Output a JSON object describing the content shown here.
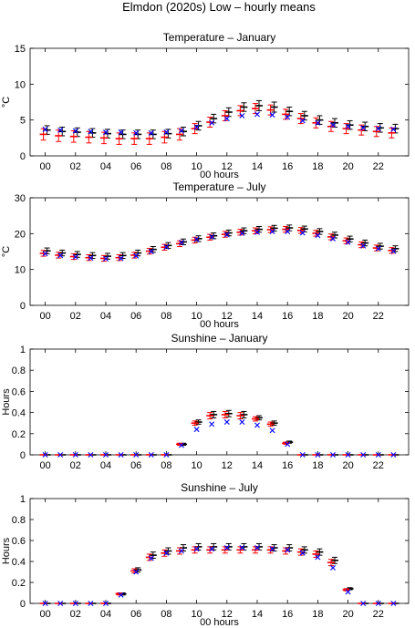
{
  "title": "Elmdon (2020s) Low – hourly means",
  "colors": {
    "black": "#000000",
    "red": "#ff0000",
    "blue": "#0000ff",
    "frame": "#000000"
  },
  "chart_data": [
    {
      "type": "scatter",
      "title": "Temperature – January",
      "xlabel": "00 hours",
      "ylabel": "°C",
      "ylim": [
        0,
        15
      ],
      "yticks": [
        "0",
        "5",
        "10",
        "15"
      ],
      "xticks": [
        "00",
        "02",
        "04",
        "06",
        "08",
        "10",
        "12",
        "14",
        "16",
        "18",
        "20",
        "22"
      ],
      "x": [
        0,
        1,
        2,
        3,
        4,
        5,
        6,
        7,
        8,
        9,
        10,
        11,
        12,
        13,
        14,
        15,
        16,
        17,
        18,
        19,
        20,
        21,
        22,
        23
      ],
      "series": [
        {
          "color": "black",
          "marker": "errorbar",
          "values": [
            3.6,
            3.4,
            3.3,
            3.2,
            3.1,
            3.0,
            3.0,
            3.0,
            3.1,
            3.4,
            4.2,
            5.2,
            6.1,
            6.8,
            7.0,
            6.8,
            6.2,
            5.6,
            5.0,
            4.6,
            4.3,
            4.1,
            3.9,
            3.8
          ],
          "err": [
            0.6,
            0.6,
            0.6,
            0.6,
            0.6,
            0.6,
            0.6,
            0.6,
            0.6,
            0.6,
            0.6,
            0.6,
            0.6,
            0.6,
            0.7,
            0.7,
            0.6,
            0.6,
            0.6,
            0.6,
            0.6,
            0.6,
            0.6,
            0.6
          ]
        },
        {
          "color": "red",
          "marker": "errorbar",
          "values": [
            3.0,
            2.8,
            2.7,
            2.6,
            2.5,
            2.4,
            2.4,
            2.4,
            2.6,
            3.0,
            3.8,
            4.7,
            5.6,
            6.3,
            6.6,
            6.4,
            5.8,
            5.2,
            4.6,
            4.1,
            3.8,
            3.6,
            3.4,
            3.2
          ],
          "err": [
            0.8,
            0.8,
            0.8,
            0.8,
            0.8,
            0.8,
            0.8,
            0.8,
            0.8,
            0.8,
            0.7,
            0.7,
            0.7,
            0.7,
            0.7,
            0.7,
            0.7,
            0.7,
            0.7,
            0.7,
            0.7,
            0.7,
            0.7,
            0.7
          ]
        },
        {
          "color": "blue",
          "marker": "x",
          "values": [
            3.7,
            3.6,
            3.5,
            3.4,
            3.3,
            3.3,
            3.2,
            3.2,
            3.3,
            3.5,
            4.0,
            4.6,
            5.2,
            5.6,
            5.8,
            5.7,
            5.4,
            4.9,
            4.6,
            4.3,
            4.1,
            3.9,
            3.8,
            3.7
          ]
        }
      ]
    },
    {
      "type": "scatter",
      "title": "Temperature – July",
      "xlabel": "00 hours",
      "ylabel": "°C",
      "ylim": [
        0,
        30
      ],
      "yticks": [
        "0",
        "10",
        "20",
        "30"
      ],
      "xticks": [
        "00",
        "02",
        "04",
        "06",
        "08",
        "10",
        "12",
        "14",
        "16",
        "18",
        "20",
        "22"
      ],
      "x": [
        0,
        1,
        2,
        3,
        4,
        5,
        6,
        7,
        8,
        9,
        10,
        11,
        12,
        13,
        14,
        15,
        16,
        17,
        18,
        19,
        20,
        21,
        22,
        23
      ],
      "series": [
        {
          "color": "black",
          "marker": "errorbar",
          "values": [
            15.2,
            14.6,
            14.2,
            13.9,
            13.7,
            13.9,
            14.6,
            15.6,
            16.7,
            17.7,
            18.6,
            19.4,
            20.2,
            20.8,
            21.2,
            21.5,
            21.6,
            21.3,
            20.6,
            19.6,
            18.5,
            17.4,
            16.5,
            15.8
          ],
          "err": [
            0.8,
            0.8,
            0.8,
            0.8,
            0.8,
            0.8,
            0.8,
            0.8,
            0.8,
            0.8,
            0.8,
            0.8,
            0.8,
            0.8,
            0.8,
            0.8,
            0.8,
            0.8,
            0.8,
            0.8,
            0.8,
            0.8,
            0.8,
            0.8
          ]
        },
        {
          "color": "red",
          "marker": "errorbar",
          "values": [
            14.5,
            14.0,
            13.6,
            13.3,
            13.1,
            13.3,
            14.0,
            15.1,
            16.2,
            17.2,
            18.2,
            19.0,
            19.8,
            20.4,
            20.8,
            21.1,
            21.2,
            20.9,
            20.1,
            19.1,
            18.0,
            16.9,
            16.0,
            15.3
          ],
          "err": [
            0.8,
            0.8,
            0.8,
            0.8,
            0.8,
            0.8,
            0.8,
            0.8,
            0.8,
            0.8,
            0.8,
            0.8,
            0.8,
            0.8,
            0.8,
            0.8,
            0.8,
            0.8,
            0.8,
            0.8,
            0.8,
            0.8,
            0.8,
            0.8
          ]
        },
        {
          "color": "blue",
          "marker": "x",
          "values": [
            14.4,
            13.9,
            13.5,
            13.2,
            13.0,
            13.1,
            13.8,
            15.0,
            16.3,
            17.5,
            18.4,
            19.1,
            19.7,
            20.1,
            20.4,
            20.6,
            20.6,
            20.2,
            19.5,
            18.6,
            17.6,
            16.6,
            15.8,
            15.1
          ]
        }
      ]
    },
    {
      "type": "scatter",
      "title": "Sunshine – January",
      "xlabel": "",
      "ylabel": "Hours",
      "ylim": [
        0,
        1
      ],
      "yticks": [
        "0",
        "0.2",
        "0.4",
        "0.6",
        "0.8",
        "1"
      ],
      "xticks": [
        "00",
        "02",
        "04",
        "06",
        "08",
        "10",
        "12",
        "14",
        "16",
        "18",
        "20",
        "22"
      ],
      "x": [
        0,
        1,
        2,
        3,
        4,
        5,
        6,
        7,
        8,
        9,
        10,
        11,
        12,
        13,
        14,
        15,
        16,
        17,
        18,
        19,
        20,
        21,
        22,
        23
      ],
      "series": [
        {
          "color": "black",
          "marker": "errorbar",
          "values": [
            0,
            0,
            0,
            0,
            0,
            0,
            0,
            0,
            0,
            0.1,
            0.31,
            0.38,
            0.39,
            0.38,
            0.35,
            0.3,
            0.12,
            0,
            0,
            0,
            0,
            0,
            0,
            0
          ],
          "err": [
            0,
            0,
            0,
            0,
            0,
            0,
            0,
            0,
            0,
            0.01,
            0.02,
            0.03,
            0.03,
            0.03,
            0.02,
            0.02,
            0.01,
            0,
            0,
            0,
            0,
            0,
            0,
            0
          ]
        },
        {
          "color": "red",
          "marker": "errorbar",
          "values": [
            0,
            0,
            0,
            0,
            0,
            0,
            0,
            0,
            0,
            0.1,
            0.3,
            0.37,
            0.38,
            0.37,
            0.34,
            0.29,
            0.11,
            0,
            0,
            0,
            0,
            0,
            0,
            0
          ],
          "err": [
            0,
            0,
            0,
            0,
            0,
            0,
            0,
            0,
            0,
            0.01,
            0.02,
            0.03,
            0.03,
            0.03,
            0.02,
            0.02,
            0.01,
            0,
            0,
            0,
            0,
            0,
            0,
            0
          ]
        },
        {
          "color": "blue",
          "marker": "x",
          "values": [
            0,
            0,
            0,
            0,
            0,
            0,
            0,
            0,
            0,
            0.09,
            0.24,
            0.29,
            0.31,
            0.31,
            0.28,
            0.23,
            0.1,
            0,
            0,
            0,
            0,
            0,
            0,
            0
          ]
        }
      ]
    },
    {
      "type": "scatter",
      "title": "Sunshine – July",
      "xlabel": "00 hours",
      "ylabel": "Hours",
      "ylim": [
        0,
        1
      ],
      "yticks": [
        "0",
        "0.2",
        "0.4",
        "0.6",
        "0.8",
        "1"
      ],
      "xticks": [
        "00",
        "02",
        "04",
        "06",
        "08",
        "10",
        "12",
        "14",
        "16",
        "18",
        "20",
        "22"
      ],
      "x": [
        0,
        1,
        2,
        3,
        4,
        5,
        6,
        7,
        8,
        9,
        10,
        11,
        12,
        13,
        14,
        15,
        16,
        17,
        18,
        19,
        20,
        21,
        22,
        23
      ],
      "series": [
        {
          "color": "black",
          "marker": "errorbar",
          "values": [
            0,
            0,
            0,
            0,
            0,
            0.09,
            0.32,
            0.46,
            0.5,
            0.53,
            0.54,
            0.54,
            0.54,
            0.54,
            0.54,
            0.53,
            0.53,
            0.51,
            0.49,
            0.41,
            0.14,
            0,
            0,
            0
          ],
          "err": [
            0,
            0,
            0,
            0,
            0,
            0.01,
            0.02,
            0.03,
            0.03,
            0.03,
            0.03,
            0.03,
            0.03,
            0.03,
            0.03,
            0.03,
            0.03,
            0.03,
            0.03,
            0.03,
            0.01,
            0,
            0,
            0
          ]
        },
        {
          "color": "red",
          "marker": "errorbar",
          "values": [
            0,
            0,
            0,
            0,
            0,
            0.09,
            0.31,
            0.44,
            0.48,
            0.5,
            0.51,
            0.51,
            0.51,
            0.51,
            0.51,
            0.51,
            0.5,
            0.49,
            0.47,
            0.39,
            0.13,
            0,
            0,
            0
          ],
          "err": [
            0,
            0,
            0,
            0,
            0,
            0.01,
            0.02,
            0.03,
            0.03,
            0.03,
            0.03,
            0.03,
            0.03,
            0.03,
            0.03,
            0.03,
            0.03,
            0.03,
            0.03,
            0.03,
            0.01,
            0,
            0,
            0
          ]
        },
        {
          "color": "blue",
          "marker": "x",
          "values": [
            0,
            0,
            0,
            0,
            0,
            0.08,
            0.3,
            0.43,
            0.48,
            0.5,
            0.52,
            0.52,
            0.53,
            0.53,
            0.53,
            0.52,
            0.51,
            0.48,
            0.44,
            0.34,
            0.11,
            0,
            0,
            0
          ]
        }
      ]
    }
  ]
}
